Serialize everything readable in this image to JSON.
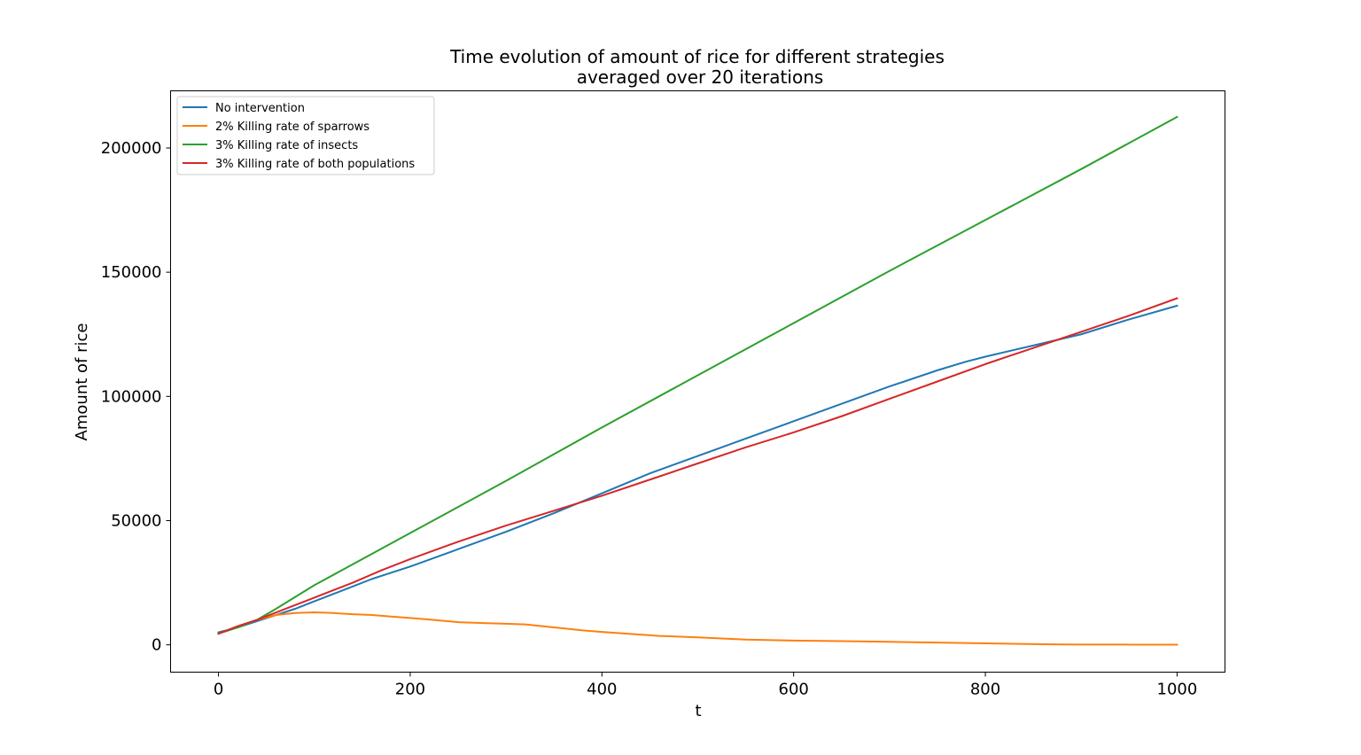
{
  "chart_data": {
    "type": "line",
    "title_line1": "Time evolution of amount of rice for different strategies",
    "title_line2": "averaged over 20 iterations",
    "xlabel": "t",
    "ylabel": "Amount of rice",
    "xlim": [
      -50,
      1050
    ],
    "ylim": [
      -11000,
      223000
    ],
    "xticks": [
      0,
      200,
      400,
      600,
      800,
      1000
    ],
    "yticks": [
      0,
      50000,
      100000,
      150000,
      200000
    ],
    "grid": false,
    "legend_position": "top-left",
    "series": [
      {
        "name": "No intervention",
        "color": "#1f77b4",
        "x": [
          0,
          20,
          40,
          60,
          80,
          100,
          120,
          140,
          160,
          180,
          200,
          250,
          300,
          350,
          400,
          450,
          500,
          550,
          600,
          650,
          700,
          750,
          780,
          800,
          850,
          900,
          950,
          1000
        ],
        "y": [
          5000,
          7000,
          9500,
          12000,
          14500,
          17500,
          20500,
          23500,
          26500,
          29000,
          31500,
          38500,
          45500,
          53000,
          61000,
          69000,
          76000,
          83000,
          90000,
          97000,
          104000,
          110500,
          114000,
          116000,
          120500,
          125000,
          131000,
          136500
        ]
      },
      {
        "name": "2% Killing rate of sparrows",
        "color": "#ff7f0e",
        "x": [
          0,
          20,
          40,
          60,
          80,
          100,
          120,
          140,
          160,
          180,
          200,
          220,
          250,
          280,
          300,
          320,
          350,
          380,
          400,
          430,
          460,
          500,
          550,
          600,
          650,
          700,
          750,
          800,
          850,
          880,
          900,
          950,
          1000
        ],
        "y": [
          4500,
          7500,
          10000,
          12000,
          12800,
          13100,
          12800,
          12300,
          12000,
          11400,
          10800,
          10200,
          9100,
          8700,
          8500,
          8200,
          7000,
          5800,
          5200,
          4400,
          3600,
          3000,
          2100,
          1700,
          1500,
          1200,
          900,
          600,
          300,
          150,
          100,
          80,
          60
        ]
      },
      {
        "name": "3% Killing rate of insects",
        "color": "#2ca02c",
        "x": [
          0,
          20,
          40,
          60,
          100,
          200,
          300,
          400,
          500,
          600,
          700,
          800,
          900,
          1000
        ],
        "y": [
          4500,
          7000,
          10000,
          14500,
          24000,
          45000,
          66000,
          87500,
          108500,
          129500,
          150500,
          171000,
          191500,
          212500
        ]
      },
      {
        "name": "3% Killing rate of both populations",
        "color": "#d62728",
        "x": [
          0,
          20,
          40,
          60,
          80,
          100,
          120,
          140,
          170,
          200,
          250,
          300,
          350,
          400,
          450,
          500,
          550,
          600,
          650,
          700,
          750,
          800,
          850,
          900,
          950,
          1000
        ],
        "y": [
          4500,
          7500,
          10000,
          13000,
          16000,
          19000,
          22000,
          25000,
          30000,
          34500,
          41500,
          48000,
          54000,
          60000,
          66500,
          73000,
          79500,
          85500,
          92000,
          99000,
          106000,
          113000,
          119500,
          126000,
          132500,
          139500
        ]
      }
    ]
  }
}
